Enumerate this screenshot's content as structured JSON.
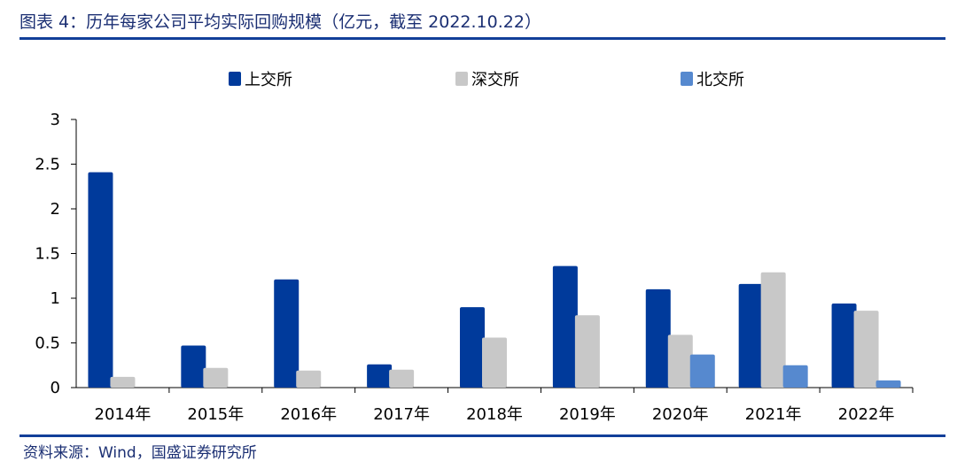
{
  "header": {
    "title": "图表 4：历年每家公司平均实际回购规模（亿元，截至 2022.10.22）"
  },
  "footer": {
    "source": "资料来源：Wind，国盛证券研究所"
  },
  "colors": {
    "accent": "#123f99"
  },
  "chart_data": {
    "type": "bar",
    "title": "",
    "xlabel": "",
    "ylabel": "",
    "categories": [
      "2014年",
      "2015年",
      "2016年",
      "2017年",
      "2018年",
      "2019年",
      "2020年",
      "2021年",
      "2022年"
    ],
    "ylim": [
      0,
      3
    ],
    "yticks": [
      0,
      0.5,
      1,
      1.5,
      2,
      2.5,
      3
    ],
    "ytick_labels": [
      "0",
      "0.5",
      "1",
      "1.5",
      "2",
      "2.5",
      "3"
    ],
    "grid": false,
    "legend_position": "top",
    "series": [
      {
        "name": "上交所",
        "color": "#003a9b",
        "values": [
          2.41,
          0.47,
          1.21,
          0.26,
          0.9,
          1.36,
          1.1,
          1.16,
          0.94
        ]
      },
      {
        "name": "深交所",
        "color": "#c8c8c8",
        "values": [
          0.12,
          0.22,
          0.19,
          0.2,
          0.56,
          0.81,
          0.59,
          1.29,
          0.86
        ]
      },
      {
        "name": "北交所",
        "color": "#5689cf",
        "values": [
          null,
          null,
          null,
          null,
          null,
          null,
          0.37,
          0.25,
          0.08
        ]
      }
    ]
  }
}
